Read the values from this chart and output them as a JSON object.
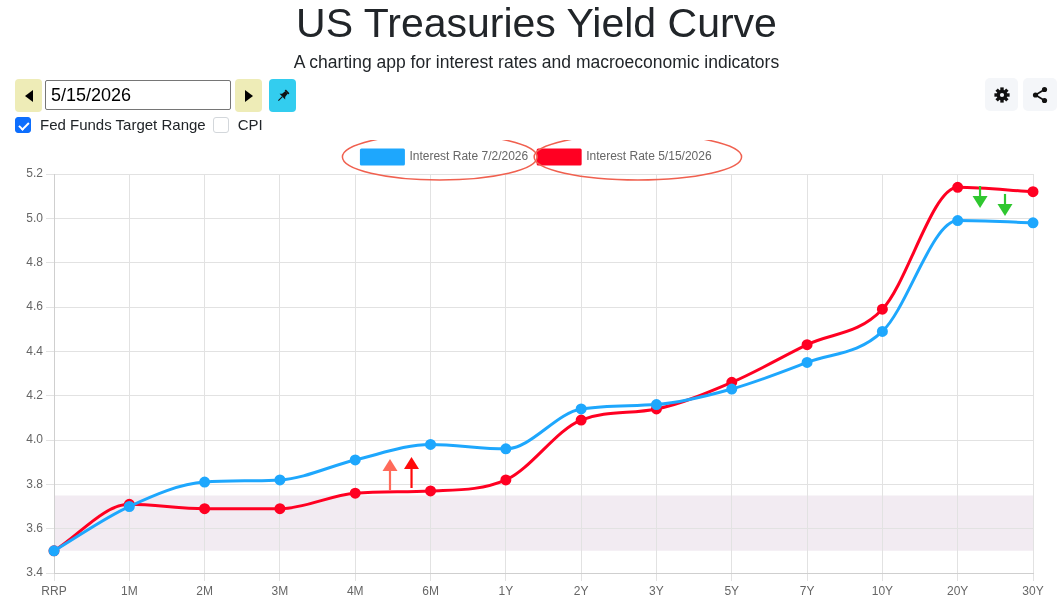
{
  "chart_data": {
    "type": "line",
    "title": "US Treasuries Yield Curve",
    "subtitle": "A charting app for interest rates and macroeconomic indicators",
    "categories": [
      "RRP",
      "1M",
      "2M",
      "3M",
      "4M",
      "6M",
      "1Y",
      "2Y",
      "3Y",
      "5Y",
      "7Y",
      "10Y",
      "20Y",
      "30Y"
    ],
    "series": [
      {
        "name": "Interest Rate 7/2/2026",
        "color": "#1ea7fd",
        "values": [
          3.5,
          3.7,
          3.81,
          3.82,
          3.91,
          3.98,
          3.96,
          4.14,
          4.16,
          4.23,
          4.35,
          4.49,
          4.99,
          4.98
        ]
      },
      {
        "name": "Interest Rate 5/15/2026",
        "color": "#ff0022",
        "values": [
          3.5,
          3.71,
          3.69,
          3.69,
          3.76,
          3.77,
          3.82,
          4.09,
          4.14,
          4.26,
          4.43,
          4.59,
          5.14,
          5.12
        ]
      }
    ],
    "ylim": [
      3.4,
      5.2
    ],
    "yticks": [
      3.4,
      3.6,
      3.8,
      {
        "value": 4,
        "label": "4.0"
      },
      4.2,
      4.4,
      4.6,
      4.8,
      {
        "value": 5,
        "label": "5.0"
      },
      5.2
    ],
    "grid": true,
    "legend": "top",
    "marker": "circle",
    "line_style": "solid",
    "bands": [
      {
        "axis": "y",
        "from": 3.5,
        "to": 3.75,
        "color": "#f2ebf2"
      }
    ],
    "annotations": [
      "5/15/2026",
      "Fed Funds Target Range",
      "CPI"
    ]
  }
}
